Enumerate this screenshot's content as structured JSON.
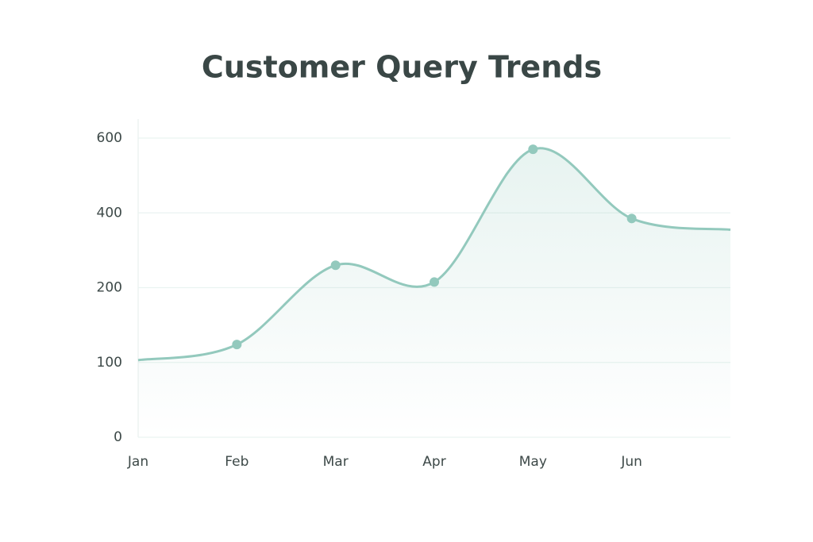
{
  "chart_data": {
    "type": "line",
    "title": "Customer Query Trends",
    "categories": [
      "Jan",
      "Feb",
      "Mar",
      "Apr",
      "May",
      "Jun",
      null
    ],
    "series": [
      {
        "color": "#93c9bd",
        "values": [
          103,
          124,
          260,
          215,
          570,
          385,
          355
        ]
      }
    ],
    "ylim": [
      0,
      600
    ],
    "yticks": [
      0,
      100,
      200,
      400,
      600
    ],
    "grid": true
  }
}
